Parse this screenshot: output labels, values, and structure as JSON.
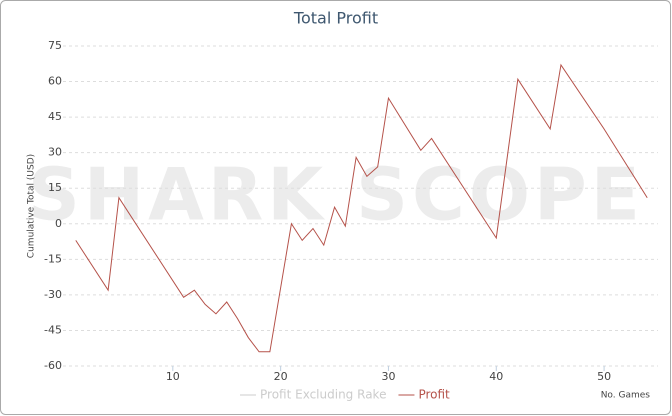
{
  "chart_data": {
    "type": "line",
    "title": "Total Profit",
    "watermark": "SHARK SCOPE",
    "xlabel": "No. Games",
    "ylabel": "Cumulative Total (USD)",
    "x": [
      1,
      4,
      5,
      11,
      12,
      13,
      14,
      15,
      16,
      17,
      18,
      19,
      21,
      22,
      23,
      24,
      25,
      26,
      27,
      28,
      29,
      30,
      33,
      34,
      40,
      42,
      45,
      46,
      50,
      54
    ],
    "series": [
      {
        "name": "Profit Excluding Rake",
        "color": "#cccccc",
        "values": [
          null,
          null,
          null,
          null,
          null,
          null,
          null,
          null,
          null,
          null,
          null,
          null,
          null,
          null,
          null,
          null,
          null,
          null,
          null,
          null,
          null,
          null,
          null,
          null,
          null,
          null,
          null,
          null,
          null,
          null
        ]
      },
      {
        "name": "Profit",
        "color": "#b5524a",
        "values": [
          -7,
          -28,
          11,
          -31,
          -28,
          -34,
          -38,
          -33,
          -40,
          -48,
          -54,
          -54,
          0,
          -7,
          -2,
          -9,
          7,
          -1,
          28,
          20,
          24,
          53,
          31,
          36,
          -6,
          61,
          40,
          67,
          40,
          11
        ]
      }
    ],
    "xlim": [
      0,
      55
    ],
    "xticks": [
      10,
      20,
      30,
      40,
      50
    ],
    "ylim": [
      -60,
      75
    ],
    "yticks": [
      -60,
      -45,
      -30,
      -15,
      0,
      15,
      30,
      45,
      60,
      75
    ],
    "grid": true
  }
}
